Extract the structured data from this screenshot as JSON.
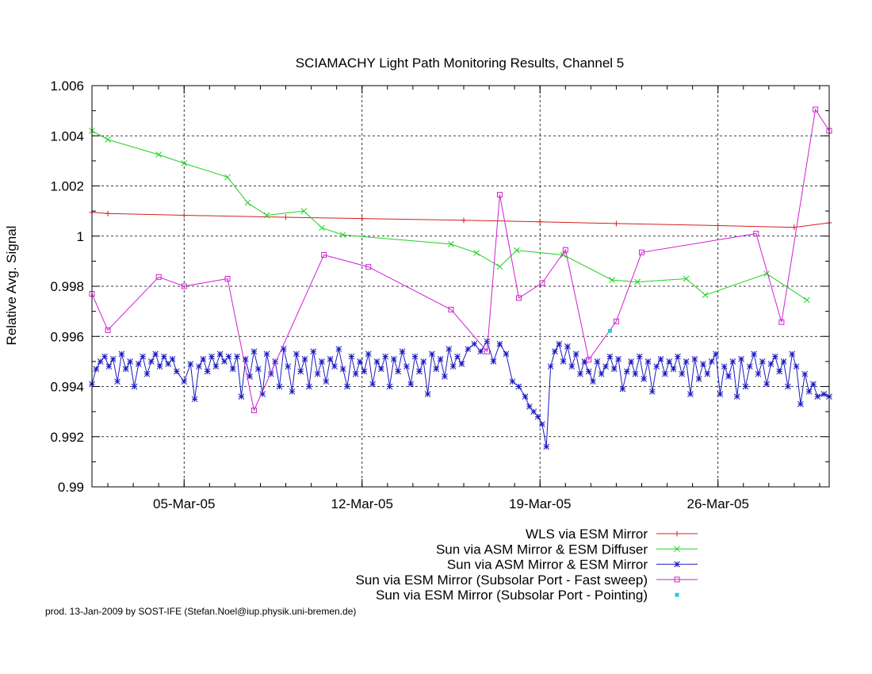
{
  "chart_data": {
    "type": "line",
    "title": "SCIAMACHY Light Path Monitoring Results, Channel 5",
    "xlabel": "",
    "ylabel": "Relative Avg. Signal",
    "x_unit": "date (2005)",
    "xlim": [
      "2005-03-01T09:00",
      "2005-03-30T09:00"
    ],
    "ylim": [
      0.99,
      1.006
    ],
    "y_ticks": [
      "1.006",
      "1.004",
      "1.002",
      "1",
      "0.998",
      "0.996",
      "0.994",
      "0.992",
      "0.99"
    ],
    "x_ticks": [
      {
        "date": "2005-03-05",
        "label": "05-Mar-05"
      },
      {
        "date": "2005-03-12",
        "label": "12-Mar-05"
      },
      {
        "date": "2005-03-19",
        "label": "19-Mar-05"
      },
      {
        "date": "2005-03-26",
        "label": "26-Mar-05"
      }
    ],
    "grid": true,
    "legend_position": "bottom-right, below plot",
    "footer": "prod. 13-Jan-2009 by SOST-IFE (Stefan.Noel@iup.physik.uni-bremen.de)",
    "series": [
      {
        "name": "WLS via ESM Mirror",
        "color": "#d42020",
        "marker": "plus",
        "points": [
          [
            "2005-03-01T09:00",
            1.00095
          ],
          [
            "2005-03-02T00:00",
            1.0009
          ],
          [
            "2005-03-05T00:00",
            1.00083
          ],
          [
            "2005-03-09T00:00",
            1.00075
          ],
          [
            "2005-03-12T00:00",
            1.0007
          ],
          [
            "2005-03-16T00:00",
            1.00063
          ],
          [
            "2005-03-19T00:00",
            1.00057
          ],
          [
            "2005-03-22T00:00",
            1.0005
          ],
          [
            "2005-03-26T00:00",
            1.00042
          ],
          [
            "2005-03-29T00:00",
            1.00035
          ],
          [
            "2005-03-30T09:00",
            1.00053
          ]
        ]
      },
      {
        "name": "Sun via ASM Mirror & ESM Diffuser",
        "color": "#20d020",
        "marker": "x",
        "points": [
          [
            "2005-03-01T09:00",
            1.0042
          ],
          [
            "2005-03-02T00:00",
            1.00385
          ],
          [
            "2005-03-04T00:00",
            1.00325
          ],
          [
            "2005-03-05T00:00",
            1.0029
          ],
          [
            "2005-03-06T17:00",
            1.00235
          ],
          [
            "2005-03-07T12:00",
            1.00133
          ],
          [
            "2005-03-08T06:00",
            1.00083
          ],
          [
            "2005-03-09T17:00",
            1.001
          ],
          [
            "2005-03-10T10:00",
            1.00033
          ],
          [
            "2005-03-11T06:00",
            1.00005
          ],
          [
            "2005-03-15T12:00",
            0.99968
          ],
          [
            "2005-03-16T12:00",
            0.99933
          ],
          [
            "2005-03-17T10:00",
            0.99878
          ],
          [
            "2005-03-18T02:00",
            0.99943
          ],
          [
            "2005-03-19T22:00",
            0.99925
          ],
          [
            "2005-03-21T20:00",
            0.99825
          ],
          [
            "2005-03-22T20:00",
            0.99817
          ],
          [
            "2005-03-24T18:00",
            0.9983
          ],
          [
            "2005-03-25T12:00",
            0.99765
          ],
          [
            "2005-03-27T22:00",
            0.9985
          ],
          [
            "2005-03-29T12:00",
            0.99745
          ]
        ]
      },
      {
        "name": "Sun via ASM Mirror & ESM Mirror",
        "color": "#1a1ac0",
        "marker": "star",
        "points": [
          [
            "2005-03-01T09:00",
            0.9941
          ],
          [
            "2005-03-01T13:00",
            0.9947
          ],
          [
            "2005-03-01T17:00",
            0.995
          ],
          [
            "2005-03-01T21:00",
            0.9952
          ],
          [
            "2005-03-02T01:00",
            0.9948
          ],
          [
            "2005-03-02T05:00",
            0.9951
          ],
          [
            "2005-03-02T09:00",
            0.9942
          ],
          [
            "2005-03-02T13:00",
            0.9953
          ],
          [
            "2005-03-02T17:00",
            0.9947
          ],
          [
            "2005-03-02T21:00",
            0.995
          ],
          [
            "2005-03-03T01:00",
            0.994
          ],
          [
            "2005-03-03T05:00",
            0.9949
          ],
          [
            "2005-03-03T09:00",
            0.9952
          ],
          [
            "2005-03-03T13:00",
            0.9945
          ],
          [
            "2005-03-03T17:00",
            0.995
          ],
          [
            "2005-03-03T21:00",
            0.9953
          ],
          [
            "2005-03-04T01:00",
            0.9948
          ],
          [
            "2005-03-04T05:00",
            0.9952
          ],
          [
            "2005-03-04T09:00",
            0.9949
          ],
          [
            "2005-03-04T13:00",
            0.9951
          ],
          [
            "2005-03-04T17:00",
            0.9946
          ],
          [
            "2005-03-05T00:00",
            0.9942
          ],
          [
            "2005-03-05T06:00",
            0.9949
          ],
          [
            "2005-03-05T10:00",
            0.9935
          ],
          [
            "2005-03-05T14:00",
            0.9948
          ],
          [
            "2005-03-05T18:00",
            0.9951
          ],
          [
            "2005-03-05T22:00",
            0.9946
          ],
          [
            "2005-03-06T02:00",
            0.9952
          ],
          [
            "2005-03-06T06:00",
            0.9948
          ],
          [
            "2005-03-06T10:00",
            0.9953
          ],
          [
            "2005-03-06T14:00",
            0.995
          ],
          [
            "2005-03-06T18:00",
            0.9952
          ],
          [
            "2005-03-06T22:00",
            0.9947
          ],
          [
            "2005-03-07T02:00",
            0.9952
          ],
          [
            "2005-03-07T06:00",
            0.9936
          ],
          [
            "2005-03-07T10:00",
            0.9951
          ],
          [
            "2005-03-07T14:00",
            0.9944
          ],
          [
            "2005-03-07T18:00",
            0.9954
          ],
          [
            "2005-03-07T22:00",
            0.9947
          ],
          [
            "2005-03-08T02:00",
            0.9937
          ],
          [
            "2005-03-08T06:00",
            0.9953
          ],
          [
            "2005-03-08T10:00",
            0.9945
          ],
          [
            "2005-03-08T14:00",
            0.995
          ],
          [
            "2005-03-08T18:00",
            0.994
          ],
          [
            "2005-03-08T22:00",
            0.9955
          ],
          [
            "2005-03-09T02:00",
            0.9948
          ],
          [
            "2005-03-09T06:00",
            0.9938
          ],
          [
            "2005-03-09T10:00",
            0.9953
          ],
          [
            "2005-03-09T14:00",
            0.9946
          ],
          [
            "2005-03-09T18:00",
            0.9951
          ],
          [
            "2005-03-09T22:00",
            0.994
          ],
          [
            "2005-03-10T02:00",
            0.9954
          ],
          [
            "2005-03-10T06:00",
            0.9945
          ],
          [
            "2005-03-10T10:00",
            0.995
          ],
          [
            "2005-03-10T14:00",
            0.9942
          ],
          [
            "2005-03-10T18:00",
            0.9951
          ],
          [
            "2005-03-10T22:00",
            0.9948
          ],
          [
            "2005-03-11T02:00",
            0.9955
          ],
          [
            "2005-03-11T06:00",
            0.9947
          ],
          [
            "2005-03-11T10:00",
            0.994
          ],
          [
            "2005-03-11T14:00",
            0.9952
          ],
          [
            "2005-03-11T18:00",
            0.9945
          ],
          [
            "2005-03-11T22:00",
            0.995
          ],
          [
            "2005-03-12T02:00",
            0.9946
          ],
          [
            "2005-03-12T06:00",
            0.9953
          ],
          [
            "2005-03-12T10:00",
            0.9941
          ],
          [
            "2005-03-12T14:00",
            0.995
          ],
          [
            "2005-03-12T18:00",
            0.9947
          ],
          [
            "2005-03-12T22:00",
            0.9952
          ],
          [
            "2005-03-13T02:00",
            0.994
          ],
          [
            "2005-03-13T06:00",
            0.9951
          ],
          [
            "2005-03-13T10:00",
            0.9946
          ],
          [
            "2005-03-13T14:00",
            0.9954
          ],
          [
            "2005-03-13T18:00",
            0.9948
          ],
          [
            "2005-03-13T22:00",
            0.9941
          ],
          [
            "2005-03-14T02:00",
            0.9952
          ],
          [
            "2005-03-14T06:00",
            0.9946
          ],
          [
            "2005-03-14T10:00",
            0.995
          ],
          [
            "2005-03-14T14:00",
            0.9937
          ],
          [
            "2005-03-14T18:00",
            0.9953
          ],
          [
            "2005-03-14T22:00",
            0.9947
          ],
          [
            "2005-03-15T02:00",
            0.9951
          ],
          [
            "2005-03-15T06:00",
            0.9944
          ],
          [
            "2005-03-15T10:00",
            0.9955
          ],
          [
            "2005-03-15T14:00",
            0.9948
          ],
          [
            "2005-03-15T18:00",
            0.9952
          ],
          [
            "2005-03-15T22:00",
            0.9949
          ],
          [
            "2005-03-16T04:00",
            0.9955
          ],
          [
            "2005-03-16T10:00",
            0.9957
          ],
          [
            "2005-03-16T16:00",
            0.9954
          ],
          [
            "2005-03-16T22:00",
            0.9958
          ],
          [
            "2005-03-17T04:00",
            0.995
          ],
          [
            "2005-03-17T10:00",
            0.9957
          ],
          [
            "2005-03-17T16:00",
            0.9953
          ],
          [
            "2005-03-17T22:00",
            0.9942
          ],
          [
            "2005-03-18T04:00",
            0.994
          ],
          [
            "2005-03-18T10:00",
            0.9936
          ],
          [
            "2005-03-18T14:00",
            0.9932
          ],
          [
            "2005-03-18T18:00",
            0.993
          ],
          [
            "2005-03-18T22:00",
            0.9928
          ],
          [
            "2005-03-19T02:00",
            0.9925
          ],
          [
            "2005-03-19T06:00",
            0.9916
          ],
          [
            "2005-03-19T10:00",
            0.9948
          ],
          [
            "2005-03-19T14:00",
            0.9954
          ],
          [
            "2005-03-19T18:00",
            0.9957
          ],
          [
            "2005-03-19T22:00",
            0.995
          ],
          [
            "2005-03-20T02:00",
            0.9956
          ],
          [
            "2005-03-20T06:00",
            0.9948
          ],
          [
            "2005-03-20T10:00",
            0.9953
          ],
          [
            "2005-03-20T14:00",
            0.9945
          ],
          [
            "2005-03-20T18:00",
            0.995
          ],
          [
            "2005-03-20T22:00",
            0.9946
          ],
          [
            "2005-03-21T02:00",
            0.9942
          ],
          [
            "2005-03-21T06:00",
            0.995
          ],
          [
            "2005-03-21T10:00",
            0.9945
          ],
          [
            "2005-03-21T14:00",
            0.9948
          ],
          [
            "2005-03-21T18:00",
            0.9952
          ],
          [
            "2005-03-21T22:00",
            0.9947
          ],
          [
            "2005-03-22T02:00",
            0.9951
          ],
          [
            "2005-03-22T06:00",
            0.9939
          ],
          [
            "2005-03-22T10:00",
            0.9946
          ],
          [
            "2005-03-22T14:00",
            0.995
          ],
          [
            "2005-03-22T18:00",
            0.9945
          ],
          [
            "2005-03-22T22:00",
            0.9952
          ],
          [
            "2005-03-23T02:00",
            0.9943
          ],
          [
            "2005-03-23T06:00",
            0.995
          ],
          [
            "2005-03-23T10:00",
            0.9938
          ],
          [
            "2005-03-23T14:00",
            0.9948
          ],
          [
            "2005-03-23T18:00",
            0.9951
          ],
          [
            "2005-03-23T22:00",
            0.9945
          ],
          [
            "2005-03-24T02:00",
            0.995
          ],
          [
            "2005-03-24T06:00",
            0.9947
          ],
          [
            "2005-03-24T10:00",
            0.9952
          ],
          [
            "2005-03-24T14:00",
            0.9945
          ],
          [
            "2005-03-24T18:00",
            0.995
          ],
          [
            "2005-03-24T22:00",
            0.9937
          ],
          [
            "2005-03-25T02:00",
            0.9951
          ],
          [
            "2005-03-25T06:00",
            0.9943
          ],
          [
            "2005-03-25T10:00",
            0.9949
          ],
          [
            "2005-03-25T14:00",
            0.9945
          ],
          [
            "2005-03-25T18:00",
            0.995
          ],
          [
            "2005-03-25T22:00",
            0.9953
          ],
          [
            "2005-03-26T02:00",
            0.9937
          ],
          [
            "2005-03-26T06:00",
            0.9948
          ],
          [
            "2005-03-26T10:00",
            0.9944
          ],
          [
            "2005-03-26T14:00",
            0.995
          ],
          [
            "2005-03-26T18:00",
            0.9936
          ],
          [
            "2005-03-26T22:00",
            0.9951
          ],
          [
            "2005-03-27T02:00",
            0.994
          ],
          [
            "2005-03-27T06:00",
            0.9948
          ],
          [
            "2005-03-27T10:00",
            0.9953
          ],
          [
            "2005-03-27T14:00",
            0.9945
          ],
          [
            "2005-03-27T18:00",
            0.995
          ],
          [
            "2005-03-27T22:00",
            0.9941
          ],
          [
            "2005-03-28T02:00",
            0.9949
          ],
          [
            "2005-03-28T06:00",
            0.9952
          ],
          [
            "2005-03-28T10:00",
            0.9946
          ],
          [
            "2005-03-28T14:00",
            0.995
          ],
          [
            "2005-03-28T18:00",
            0.994
          ],
          [
            "2005-03-28T22:00",
            0.9953
          ],
          [
            "2005-03-29T02:00",
            0.9948
          ],
          [
            "2005-03-29T06:00",
            0.9933
          ],
          [
            "2005-03-29T10:00",
            0.9945
          ],
          [
            "2005-03-29T14:00",
            0.9938
          ],
          [
            "2005-03-29T18:00",
            0.9941
          ],
          [
            "2005-03-29T22:00",
            0.9936
          ],
          [
            "2005-03-30T04:00",
            0.9937
          ],
          [
            "2005-03-30T09:00",
            0.9936
          ]
        ]
      },
      {
        "name": "Sun via ESM Mirror (Subsolar Port - Fast sweep)",
        "color": "#d020d0",
        "marker": "square",
        "points": [
          [
            "2005-03-01T09:00",
            0.9977
          ],
          [
            "2005-03-02T00:00",
            0.99625
          ],
          [
            "2005-03-04T00:00",
            0.99837
          ],
          [
            "2005-03-05T00:00",
            0.998
          ],
          [
            "2005-03-06T17:00",
            0.9983
          ],
          [
            "2005-03-07T18:00",
            0.99305
          ],
          [
            "2005-03-10T12:00",
            0.99925
          ],
          [
            "2005-03-12T06:00",
            0.99877
          ],
          [
            "2005-03-15T12:00",
            0.99707
          ],
          [
            "2005-03-16T22:00",
            0.9954
          ],
          [
            "2005-03-17T10:00",
            1.00165
          ],
          [
            "2005-03-18T04:00",
            0.99753
          ],
          [
            "2005-03-19T02:00",
            0.99813
          ],
          [
            "2005-03-20T00:00",
            0.99945
          ],
          [
            "2005-03-20T22:00",
            0.99507
          ],
          [
            "2005-03-22T00:00",
            0.9966
          ],
          [
            "2005-03-23T00:00",
            0.99935
          ],
          [
            "2005-03-27T12:00",
            1.0001
          ],
          [
            "2005-03-28T12:00",
            0.99657
          ],
          [
            "2005-03-29T20:00",
            1.00505
          ],
          [
            "2005-03-30T09:00",
            1.0042
          ]
        ]
      },
      {
        "name": "Sun via ESM Mirror (Subsolar Port - Pointing)",
        "color": "#20d0e0",
        "marker": "dot",
        "points": [
          [
            "2005-03-21T18:00",
            0.99622
          ]
        ]
      }
    ]
  }
}
